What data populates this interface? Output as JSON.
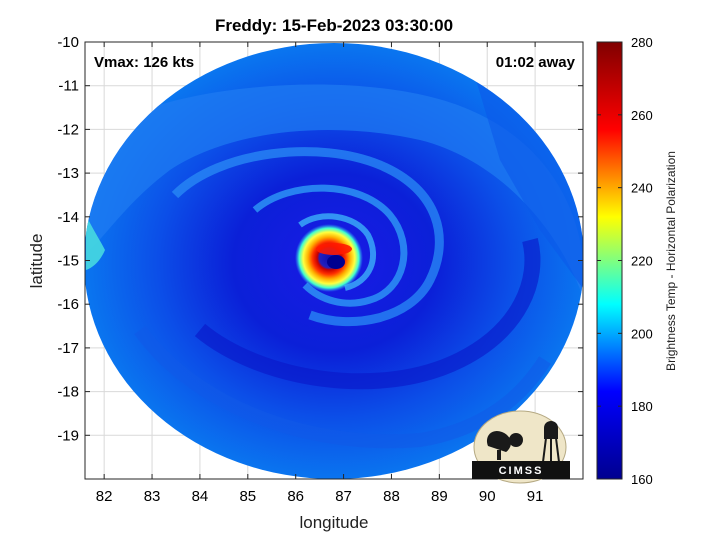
{
  "chart_data": {
    "type": "heatmap",
    "title": "Freddy: 15-Feb-2023 03:30:00",
    "xlabel": "longitude",
    "ylabel": "latitude",
    "xlim": [
      81.6,
      92
    ],
    "ylim": [
      -20,
      -10
    ],
    "y_reversed": true,
    "xticks": [
      "82",
      "83",
      "84",
      "85",
      "86",
      "87",
      "88",
      "89",
      "90",
      "91"
    ],
    "yticks": [
      "-10",
      "-11",
      "-12",
      "-13",
      "-14",
      "-15",
      "-16",
      "-17",
      "-18",
      "-19"
    ],
    "grid": true,
    "annotations": {
      "vmax": "Vmax: 126 kts",
      "time_offset": "01:02 away"
    },
    "eye_center": {
      "lon": 86.7,
      "lat": -15.0
    },
    "swath_center": {
      "lon": 86.8,
      "lat": -15.0
    },
    "swath_radius_deg_lon": 4.95,
    "colorbar": {
      "label": "Brightness Temp - Horizontal Polarization",
      "min": 160,
      "max": 280,
      "ticks": [
        "160",
        "180",
        "200",
        "220",
        "240",
        "260",
        "280"
      ],
      "colormap": "jet"
    },
    "logo_text": "CIMSS"
  },
  "colors": {
    "jet_stops": [
      "#00008f",
      "#0000ff",
      "#00ffff",
      "#ffff00",
      "#ff0000",
      "#800000"
    ],
    "background": "#ffffff",
    "grid": "#d9d9d9"
  }
}
